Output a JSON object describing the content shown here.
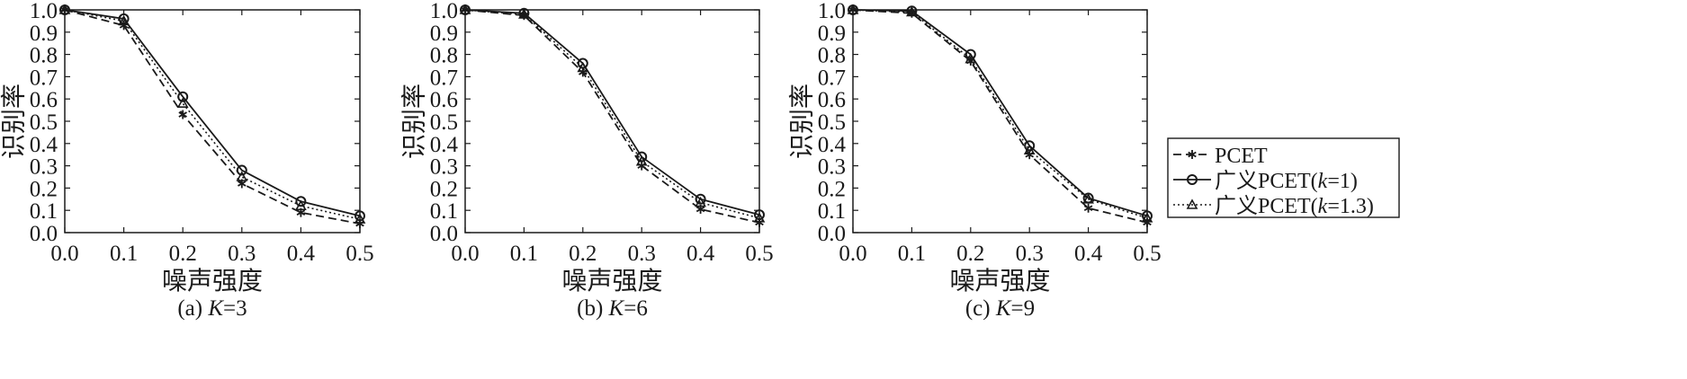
{
  "chart_data": [
    {
      "type": "line",
      "caption": "(a) K=3",
      "caption_prefix": "(a) ",
      "caption_var": "K",
      "caption_suffix": "=3",
      "xlabel": "噪声强度",
      "ylabel": "识别率",
      "x": [
        0.0,
        0.1,
        0.2,
        0.3,
        0.4,
        0.5
      ],
      "xticks": [
        "0.0",
        "0.1",
        "0.2",
        "0.3",
        "0.4",
        "0.5"
      ],
      "yticks": [
        "0.0",
        "0.1",
        "0.2",
        "0.3",
        "0.4",
        "0.5",
        "0.6",
        "0.7",
        "0.8",
        "0.9",
        "1.0"
      ],
      "xlim": [
        0,
        0.5
      ],
      "ylim": [
        0,
        1
      ],
      "grid": false,
      "series": [
        {
          "name": "PCET",
          "values": [
            1.0,
            0.93,
            0.53,
            0.22,
            0.09,
            0.04
          ]
        },
        {
          "name": "广义PCET(k=1)",
          "values": [
            1.0,
            0.96,
            0.61,
            0.28,
            0.14,
            0.075
          ]
        },
        {
          "name": "广义PCET(k=1.3)",
          "values": [
            1.0,
            0.95,
            0.58,
            0.25,
            0.12,
            0.06
          ]
        }
      ]
    },
    {
      "type": "line",
      "caption": "(b) K=6",
      "caption_prefix": "(b) ",
      "caption_var": "K",
      "caption_suffix": "=6",
      "xlabel": "噪声强度",
      "ylabel": "识别率",
      "x": [
        0.0,
        0.1,
        0.2,
        0.3,
        0.4,
        0.5
      ],
      "xticks": [
        "0.0",
        "0.1",
        "0.2",
        "0.3",
        "0.4",
        "0.5"
      ],
      "yticks": [
        "0.0",
        "0.1",
        "0.2",
        "0.3",
        "0.4",
        "0.5",
        "0.6",
        "0.7",
        "0.8",
        "0.9",
        "1.0"
      ],
      "xlim": [
        0,
        0.5
      ],
      "ylim": [
        0,
        1
      ],
      "grid": false,
      "series": [
        {
          "name": "PCET",
          "values": [
            1.0,
            0.975,
            0.72,
            0.3,
            0.105,
            0.045
          ]
        },
        {
          "name": "广义PCET(k=1)",
          "values": [
            1.0,
            0.985,
            0.76,
            0.34,
            0.15,
            0.08
          ]
        },
        {
          "name": "广义PCET(k=1.3)",
          "values": [
            1.0,
            0.98,
            0.74,
            0.32,
            0.135,
            0.065
          ]
        }
      ]
    },
    {
      "type": "line",
      "caption": "(c) K=9",
      "caption_prefix": "(c) ",
      "caption_var": "K",
      "caption_suffix": "=9",
      "xlabel": "噪声强度",
      "ylabel": "识别率",
      "x": [
        0.0,
        0.1,
        0.2,
        0.3,
        0.4,
        0.5
      ],
      "xticks": [
        "0.0",
        "0.1",
        "0.2",
        "0.3",
        "0.4",
        "0.5"
      ],
      "yticks": [
        "0.0",
        "0.1",
        "0.2",
        "0.3",
        "0.4",
        "0.5",
        "0.6",
        "0.7",
        "0.8",
        "0.9",
        "1.0"
      ],
      "xlim": [
        0,
        0.5
      ],
      "ylim": [
        0,
        1
      ],
      "grid": false,
      "series": [
        {
          "name": "PCET",
          "values": [
            1.0,
            0.985,
            0.77,
            0.35,
            0.11,
            0.045
          ]
        },
        {
          "name": "广义PCET(k=1)",
          "values": [
            1.0,
            0.995,
            0.8,
            0.39,
            0.155,
            0.075
          ]
        },
        {
          "name": "广义PCET(k=1.3)",
          "values": [
            1.0,
            0.99,
            0.78,
            0.37,
            0.15,
            0.065
          ]
        }
      ]
    }
  ],
  "legend": {
    "placement": "right",
    "items": [
      {
        "prefix": "PCET",
        "var": "",
        "suffix": "",
        "style": "dashed",
        "marker": "asterisk"
      },
      {
        "prefix": "广义PCET(",
        "var": "k",
        "suffix": "=1)",
        "style": "solid",
        "marker": "circle"
      },
      {
        "prefix": "广义PCET(",
        "var": "k",
        "suffix": "=1.3)",
        "style": "dotted",
        "marker": "triangle"
      }
    ]
  },
  "colors": {
    "line": "#1a1a1a",
    "background": "#ffffff"
  }
}
